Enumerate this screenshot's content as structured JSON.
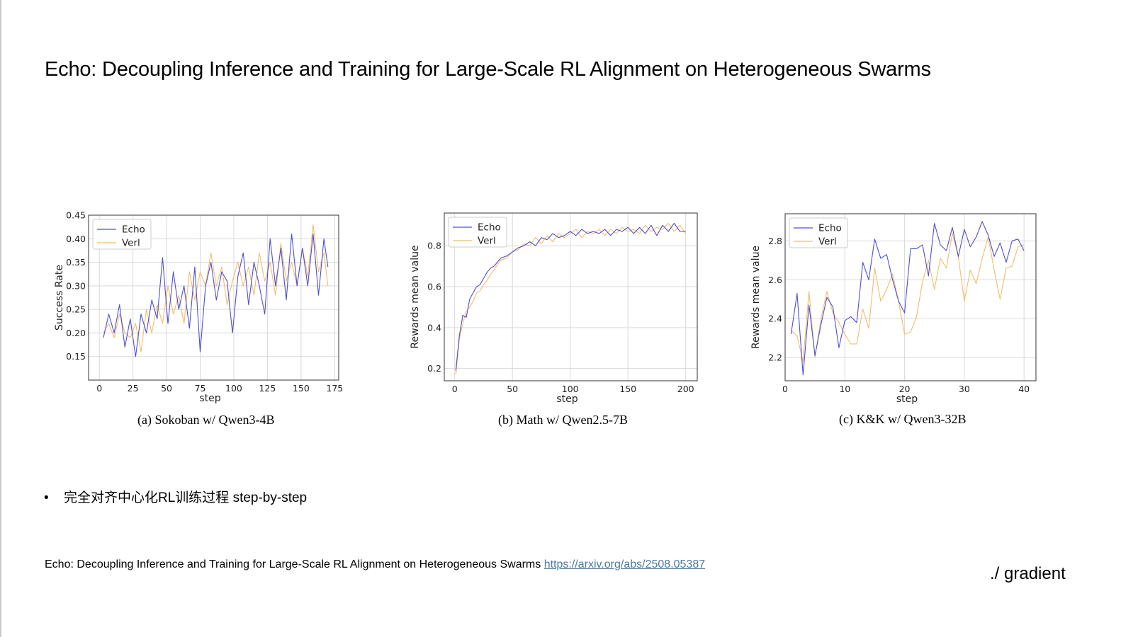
{
  "slide": {
    "title": "Echo: Decoupling Inference and Training for Large-Scale RL Alignment on Heterogeneous Swarms",
    "bullet": "完全对齐中心化RL训练过程 step-by-step",
    "reference_text": "Echo: Decoupling Inference and Training for Large-Scale RL Alignment on Heterogeneous Swarms",
    "reference_link": "https://arxiv.org/abs/2508.05387",
    "brand": "./ gradient"
  },
  "colors": {
    "echo": "#4f4fd2",
    "verl": "#f2bd6b",
    "grid": "#d9d9d9",
    "link": "#4a7aa0"
  },
  "chart_data": [
    {
      "type": "line",
      "caption": "(a) Sokoban w/ Qwen3-4B",
      "xlabel": "step",
      "ylabel": "Success Rate",
      "xlim": [
        -8,
        178
      ],
      "ylim": [
        0.1,
        0.45
      ],
      "xticks": [
        0,
        25,
        50,
        75,
        100,
        125,
        150,
        175
      ],
      "yticks": [
        0.15,
        0.2,
        0.25,
        0.3,
        0.35,
        0.4,
        0.45
      ],
      "ytick_labels": [
        "0.15",
        "0.20",
        "0.25",
        "0.30",
        "0.35",
        "0.40",
        "0.45"
      ],
      "grid": true,
      "legend": "top-left",
      "series": [
        {
          "name": "Echo",
          "x": [
            3,
            7,
            11,
            15,
            19,
            23,
            27,
            31,
            35,
            39,
            43,
            47,
            51,
            55,
            59,
            63,
            67,
            71,
            75,
            79,
            83,
            87,
            91,
            95,
            99,
            103,
            107,
            111,
            115,
            119,
            123,
            127,
            131,
            135,
            139,
            143,
            147,
            151,
            155,
            159,
            163,
            167,
            170
          ],
          "y": [
            0.19,
            0.24,
            0.2,
            0.26,
            0.17,
            0.23,
            0.15,
            0.24,
            0.2,
            0.27,
            0.23,
            0.36,
            0.22,
            0.33,
            0.25,
            0.3,
            0.21,
            0.34,
            0.16,
            0.3,
            0.35,
            0.27,
            0.33,
            0.31,
            0.2,
            0.32,
            0.37,
            0.26,
            0.35,
            0.3,
            0.24,
            0.4,
            0.3,
            0.38,
            0.27,
            0.41,
            0.3,
            0.38,
            0.3,
            0.41,
            0.28,
            0.4,
            0.34
          ]
        },
        {
          "name": "Verl",
          "x": [
            3,
            7,
            11,
            15,
            19,
            23,
            27,
            31,
            35,
            39,
            43,
            47,
            51,
            55,
            59,
            63,
            67,
            71,
            75,
            79,
            83,
            87,
            91,
            95,
            99,
            103,
            107,
            111,
            115,
            119,
            123,
            127,
            131,
            135,
            139,
            143,
            147,
            151,
            155,
            159,
            163,
            167,
            170
          ],
          "y": [
            0.2,
            0.22,
            0.19,
            0.24,
            0.2,
            0.19,
            0.22,
            0.16,
            0.25,
            0.2,
            0.26,
            0.22,
            0.3,
            0.24,
            0.28,
            0.22,
            0.33,
            0.27,
            0.33,
            0.3,
            0.37,
            0.3,
            0.34,
            0.26,
            0.31,
            0.35,
            0.3,
            0.34,
            0.28,
            0.37,
            0.31,
            0.35,
            0.28,
            0.39,
            0.31,
            0.35,
            0.3,
            0.38,
            0.32,
            0.43,
            0.33,
            0.37,
            0.3
          ]
        }
      ]
    },
    {
      "type": "line",
      "caption": "(b) Math w/ Qwen2.5-7B",
      "xlabel": "step",
      "ylabel": "Rewards mean value",
      "xlim": [
        -9,
        210
      ],
      "ylim": [
        0.14,
        0.96
      ],
      "xticks": [
        0,
        50,
        100,
        150,
        200
      ],
      "yticks": [
        0.2,
        0.4,
        0.6,
        0.8
      ],
      "ytick_labels": [
        "0.2",
        "0.4",
        "0.6",
        "0.8"
      ],
      "grid": true,
      "legend": "top-left",
      "series": [
        {
          "name": "Echo",
          "x": [
            1,
            4,
            7,
            10,
            13,
            16,
            19,
            22,
            25,
            28,
            31,
            34,
            37,
            40,
            45,
            50,
            55,
            60,
            65,
            70,
            75,
            80,
            85,
            90,
            95,
            100,
            105,
            110,
            115,
            120,
            125,
            130,
            135,
            140,
            145,
            150,
            155,
            160,
            165,
            170,
            175,
            180,
            185,
            190,
            195,
            200
          ],
          "y": [
            0.19,
            0.36,
            0.46,
            0.45,
            0.54,
            0.57,
            0.6,
            0.61,
            0.64,
            0.67,
            0.69,
            0.7,
            0.72,
            0.74,
            0.75,
            0.77,
            0.79,
            0.8,
            0.82,
            0.8,
            0.84,
            0.83,
            0.86,
            0.84,
            0.85,
            0.87,
            0.85,
            0.88,
            0.86,
            0.87,
            0.86,
            0.88,
            0.85,
            0.88,
            0.87,
            0.89,
            0.86,
            0.89,
            0.86,
            0.9,
            0.85,
            0.9,
            0.87,
            0.91,
            0.87,
            0.87
          ]
        },
        {
          "name": "Verl",
          "x": [
            1,
            4,
            7,
            10,
            13,
            16,
            19,
            22,
            25,
            28,
            31,
            34,
            37,
            40,
            45,
            50,
            55,
            60,
            65,
            70,
            75,
            80,
            85,
            90,
            95,
            100,
            105,
            110,
            115,
            120,
            125,
            130,
            135,
            140,
            145,
            150,
            155,
            160,
            165,
            170,
            175,
            180,
            185,
            190,
            195,
            200
          ],
          "y": [
            0.17,
            0.34,
            0.42,
            0.48,
            0.5,
            0.53,
            0.57,
            0.58,
            0.61,
            0.63,
            0.66,
            0.68,
            0.71,
            0.73,
            0.74,
            0.77,
            0.78,
            0.81,
            0.8,
            0.84,
            0.81,
            0.85,
            0.82,
            0.86,
            0.84,
            0.86,
            0.88,
            0.84,
            0.87,
            0.86,
            0.88,
            0.85,
            0.88,
            0.86,
            0.89,
            0.87,
            0.88,
            0.86,
            0.9,
            0.87,
            0.89,
            0.88,
            0.91,
            0.87,
            0.9,
            0.86
          ]
        }
      ]
    },
    {
      "type": "line",
      "caption": "(c) K&K w/ Qwen3-32B",
      "xlabel": "step",
      "ylabel": "Rewards mean value",
      "xlim": [
        0,
        42
      ],
      "ylim": [
        2.08,
        2.94
      ],
      "xticks": [
        0,
        10,
        20,
        30,
        40
      ],
      "yticks": [
        2.2,
        2.4,
        2.6,
        2.8
      ],
      "ytick_labels": [
        "2.2",
        "2.4",
        "2.6",
        "2.8"
      ],
      "grid": true,
      "legend": "top-left",
      "series": [
        {
          "name": "Echo",
          "x": [
            1,
            2,
            3,
            4,
            5,
            6,
            7,
            8,
            9,
            10,
            11,
            12,
            13,
            14,
            15,
            16,
            17,
            18,
            19,
            20,
            21,
            22,
            23,
            24,
            25,
            26,
            27,
            28,
            29,
            30,
            31,
            32,
            33,
            34,
            35,
            36,
            37,
            38,
            39,
            40
          ],
          "y": [
            2.32,
            2.53,
            2.11,
            2.47,
            2.21,
            2.37,
            2.51,
            2.46,
            2.25,
            2.39,
            2.41,
            2.38,
            2.69,
            2.6,
            2.81,
            2.71,
            2.73,
            2.6,
            2.49,
            2.43,
            2.76,
            2.76,
            2.78,
            2.62,
            2.89,
            2.78,
            2.75,
            2.87,
            2.72,
            2.86,
            2.77,
            2.82,
            2.9,
            2.83,
            2.72,
            2.79,
            2.69,
            2.8,
            2.81,
            2.75
          ]
        },
        {
          "name": "Verl",
          "x": [
            1,
            2,
            3,
            4,
            5,
            6,
            7,
            8,
            9,
            10,
            11,
            12,
            13,
            14,
            15,
            16,
            17,
            18,
            19,
            20,
            21,
            22,
            23,
            24,
            25,
            26,
            27,
            28,
            29,
            30,
            31,
            32,
            33,
            34,
            35,
            36,
            37,
            38,
            39,
            40
          ],
          "y": [
            2.34,
            2.31,
            2.18,
            2.54,
            2.2,
            2.4,
            2.54,
            2.43,
            2.38,
            2.32,
            2.27,
            2.27,
            2.45,
            2.35,
            2.66,
            2.49,
            2.55,
            2.63,
            2.49,
            2.32,
            2.33,
            2.41,
            2.59,
            2.7,
            2.55,
            2.71,
            2.66,
            2.84,
            2.72,
            2.49,
            2.65,
            2.58,
            2.71,
            2.82,
            2.65,
            2.5,
            2.66,
            2.67,
            2.77,
            2.78
          ]
        }
      ]
    }
  ]
}
